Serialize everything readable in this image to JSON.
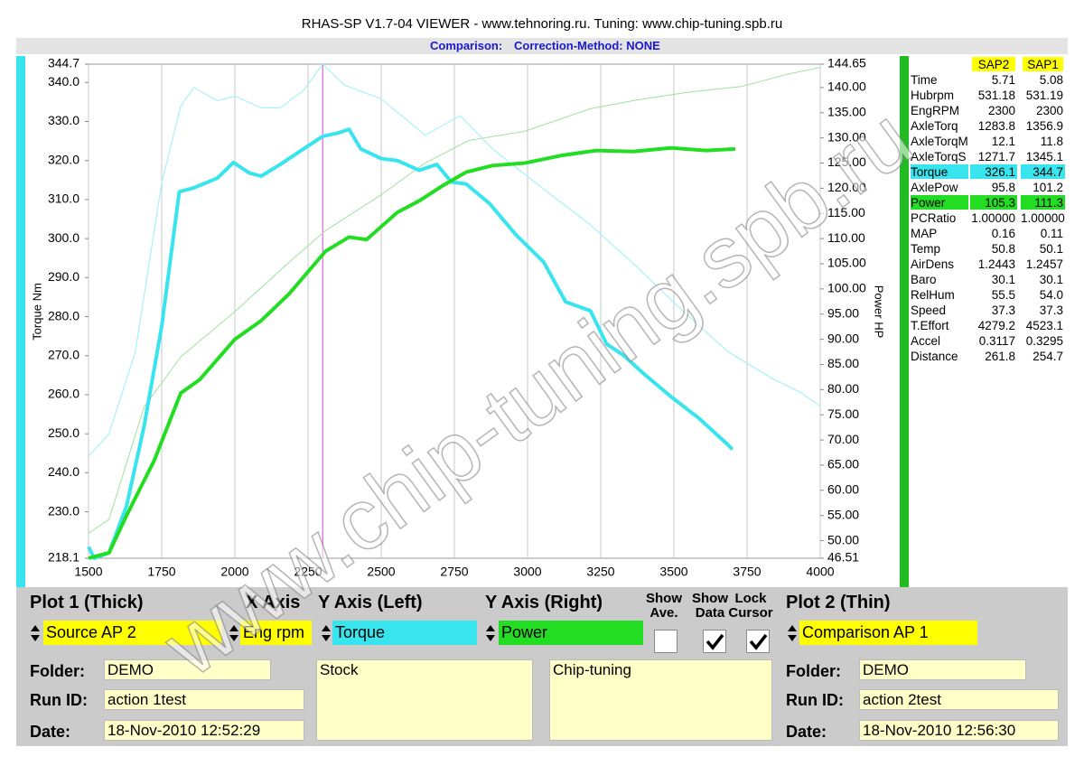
{
  "header": {
    "title": "RHAS-SP V1.7-04  VIEWER - www.tehnoring.ru. Tuning: www.chip-tuning.spb.ru",
    "comparison": "Comparison:",
    "method": "Correction-Method: NONE"
  },
  "watermark": "www.chip-tuning.spb.ru",
  "chart_data": {
    "type": "line",
    "y_label": "Torque Nm",
    "y2_label": "Power HP",
    "xlim": [
      1500,
      4000
    ],
    "xticks": [
      1500,
      1750,
      2000,
      2250,
      2500,
      2750,
      3000,
      3250,
      3500,
      3750,
      4000
    ],
    "ylim": [
      218.1,
      344.7
    ],
    "yticks": [
      218.1,
      {
        "value": 230,
        "label": "230.0"
      },
      {
        "value": 240,
        "label": "240.0"
      },
      {
        "value": 250,
        "label": "250.0"
      },
      {
        "value": 260,
        "label": "260.0"
      },
      {
        "value": 270,
        "label": "270.0"
      },
      {
        "value": 280,
        "label": "280.0"
      },
      {
        "value": 290,
        "label": "290.0"
      },
      {
        "value": 300,
        "label": "300.0"
      },
      {
        "value": 310,
        "label": "310.0"
      },
      {
        "value": 320,
        "label": "320.0"
      },
      {
        "value": 330,
        "label": "330.0"
      },
      {
        "value": 340,
        "label": "340.0"
      },
      344.7
    ],
    "y2lim": [
      46.51,
      144.65
    ],
    "y2ticks": [
      46.51,
      {
        "value": 50,
        "label": "50.00"
      },
      {
        "value": 55,
        "label": "55.00"
      },
      {
        "value": 60,
        "label": "60.00"
      },
      {
        "value": 65,
        "label": "65.00"
      },
      {
        "value": 70,
        "label": "70.00"
      },
      {
        "value": 75,
        "label": "75.00"
      },
      {
        "value": 80,
        "label": "80.00"
      },
      {
        "value": 85,
        "label": "85.00"
      },
      {
        "value": 90,
        "label": "90.00"
      },
      {
        "value": 95,
        "label": "95.00"
      },
      {
        "value": 100,
        "label": "100.00"
      },
      {
        "value": 105,
        "label": "105.00"
      },
      {
        "value": 110,
        "label": "110.00"
      },
      {
        "value": 115,
        "label": "115.00"
      },
      {
        "value": 120,
        "label": "120.00"
      },
      {
        "value": 125,
        "label": "125.00"
      },
      {
        "value": 130,
        "label": "130.00"
      },
      {
        "value": 135,
        "label": "135.00"
      },
      {
        "value": 140,
        "label": "140.00"
      },
      144.65
    ],
    "grid": "x",
    "cursor_x": 2300,
    "cursor_color": "#dd44dd",
    "series": [
      {
        "color": "#a8f2f6",
        "width": 1.2,
        "axis": "y",
        "x": [
          1500,
          1570,
          1660,
          1750,
          1815,
          1860,
          1940,
          2000,
          2090,
          2155,
          2235,
          2300,
          2375,
          2500,
          2650,
          2770,
          2880,
          3050,
          3215,
          3370,
          3530,
          3685,
          3840,
          3935,
          4000
        ],
        "values": [
          244.2,
          250,
          271,
          314.3,
          334,
          338.7,
          335.3,
          336.5,
          333.5,
          333.5,
          338,
          344.7,
          339.3,
          335.8,
          326.5,
          331.5,
          323,
          313,
          303.5,
          293,
          281.5,
          271,
          264,
          260.5,
          257
        ]
      },
      {
        "color": "#9be39b",
        "width": 1,
        "axis": "y2",
        "x": [
          1500,
          1570,
          1690,
          1815,
          2000,
          2185,
          2310,
          2500,
          2650,
          2800,
          2990,
          3215,
          3370,
          3540,
          3730,
          3885,
          4000
        ],
        "values": [
          51.5,
          54.2,
          76.6,
          86.5,
          95.5,
          105.3,
          111.6,
          118.7,
          125,
          129.5,
          131.3,
          135.8,
          137.5,
          139,
          140.2,
          142.6,
          144
        ]
      },
      {
        "color": "#38e4ee",
        "width": 4,
        "axis": "y",
        "x": [
          1500,
          1520,
          1570,
          1630,
          1690,
          1750,
          1810,
          1860,
          1940,
          1995,
          2050,
          2090,
          2155,
          2215,
          2300,
          2350,
          2390,
          2430,
          2500,
          2555,
          2630,
          2690,
          2740,
          2790,
          2870,
          2960,
          3055,
          3130,
          3215,
          3270,
          3330,
          3395,
          3490,
          3585,
          3680,
          3700
        ],
        "values": [
          221,
          218.1,
          219.5,
          231.5,
          252,
          277.5,
          312,
          313,
          315.5,
          319.5,
          316.8,
          316,
          319,
          322,
          326.2,
          327,
          328,
          323,
          320.5,
          320,
          317.5,
          319,
          314.5,
          314,
          309,
          301,
          294,
          283.8,
          281.5,
          273,
          270,
          265.5,
          259.5,
          254,
          247.5,
          246
        ]
      },
      {
        "color": "#22dd22",
        "width": 4,
        "axis": "y2",
        "x": [
          1500,
          1570,
          1630,
          1725,
          1815,
          1880,
          2000,
          2090,
          2185,
          2310,
          2390,
          2450,
          2555,
          2630,
          2710,
          2790,
          2880,
          2990,
          3115,
          3235,
          3360,
          3490,
          3610,
          3710
        ],
        "values": [
          46.51,
          47.6,
          55,
          66,
          79.3,
          82,
          90,
          93.7,
          99,
          107.5,
          110.3,
          109.8,
          115.2,
          117.5,
          120.5,
          123.2,
          124.5,
          125,
          126.5,
          127.5,
          127.3,
          128,
          127.5,
          127.8
        ]
      }
    ]
  },
  "table": {
    "headers": [
      "SAP2",
      "SAP1"
    ],
    "rows": [
      {
        "label": "Time",
        "v1": "5.71",
        "v2": "5.08"
      },
      {
        "label": "Hubrpm",
        "v1": "531.18",
        "v2": "531.19"
      },
      {
        "label": "EngRPM",
        "v1": "2300",
        "v2": "2300"
      },
      {
        "label": "AxleTorq",
        "v1": "1283.8",
        "v2": "1356.9"
      },
      {
        "label": "AxleTorqM",
        "v1": "12.1",
        "v2": "11.8"
      },
      {
        "label": "AxleTorqS",
        "v1": "1271.7",
        "v2": "1345.1"
      },
      {
        "label": "Torque",
        "v1": "326.1",
        "v2": "344.7",
        "color": "#38e4ee"
      },
      {
        "label": "AxlePow",
        "v1": "95.8",
        "v2": "101.2"
      },
      {
        "label": "Power",
        "v1": "105.3",
        "v2": "111.3",
        "color": "#22dd22"
      },
      {
        "label": "PCRatio",
        "v1": "1.00000",
        "v2": "1.00000"
      },
      {
        "label": "MAP",
        "v1": "0.16",
        "v2": "0.11"
      },
      {
        "label": "Temp",
        "v1": "50.8",
        "v2": "50.1"
      },
      {
        "label": "AirDens",
        "v1": "1.2443",
        "v2": "1.2457"
      },
      {
        "label": "Baro",
        "v1": "30.1",
        "v2": "30.1"
      },
      {
        "label": "RelHum",
        "v1": "55.5",
        "v2": "54.0"
      },
      {
        "label": "Speed",
        "v1": "37.3",
        "v2": "37.3"
      },
      {
        "label": "T.Effort",
        "v1": "4279.2",
        "v2": "4523.1"
      },
      {
        "label": "Accel",
        "v1": "0.3117",
        "v2": "0.3295"
      },
      {
        "label": "Distance",
        "v1": "261.8",
        "v2": "254.7"
      }
    ]
  },
  "controls": {
    "plot1": "Plot 1 (Thick)",
    "x_axis": "X Axis",
    "y_left": "Y Axis (Left)",
    "y_right": "Y Axis (Right)",
    "plot2": "Plot 2 (Thin)",
    "checks": [
      {
        "label": "Show Ave.",
        "checked": false
      },
      {
        "label": "Show Data",
        "checked": true
      },
      {
        "label": "Lock Cursor",
        "checked": true
      }
    ],
    "source1": "Source AP 2",
    "x_select": "Eng rpm",
    "yl_select": "Torque",
    "yr_select": "Power",
    "source2": "Comparison AP 1",
    "folder_label": "Folder:",
    "run_label": "Run ID:",
    "date_label": "Date:",
    "folder1": "DEMO",
    "run1": "action 1test",
    "date1": "18-Nov-2010  12:52:29",
    "note1": "Stock",
    "note2": "Chip-tuning",
    "folder2": "DEMO",
    "run2": "action 2test",
    "date2": "18-Nov-2010  12:56:30"
  }
}
